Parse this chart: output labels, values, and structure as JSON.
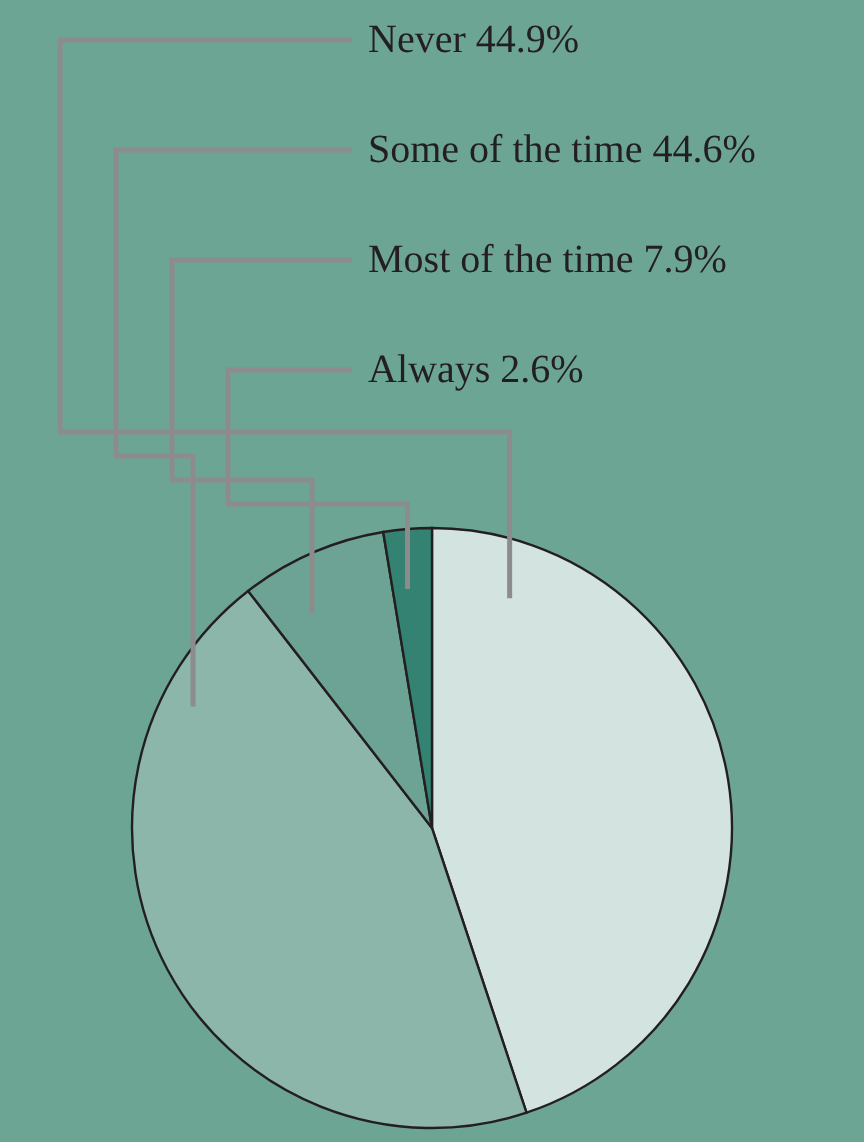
{
  "chart_data": {
    "type": "pie",
    "categories": [
      "Never",
      "Some of the time",
      "Most of the time",
      "Always"
    ],
    "values": [
      44.9,
      44.6,
      7.9,
      2.6
    ],
    "colors": [
      "#d3e3df",
      "#8db6aa",
      "#6ca395",
      "#338272"
    ],
    "value_labels": [
      "44.9%",
      "44.6%",
      "7.9%",
      "2.6%"
    ]
  }
}
